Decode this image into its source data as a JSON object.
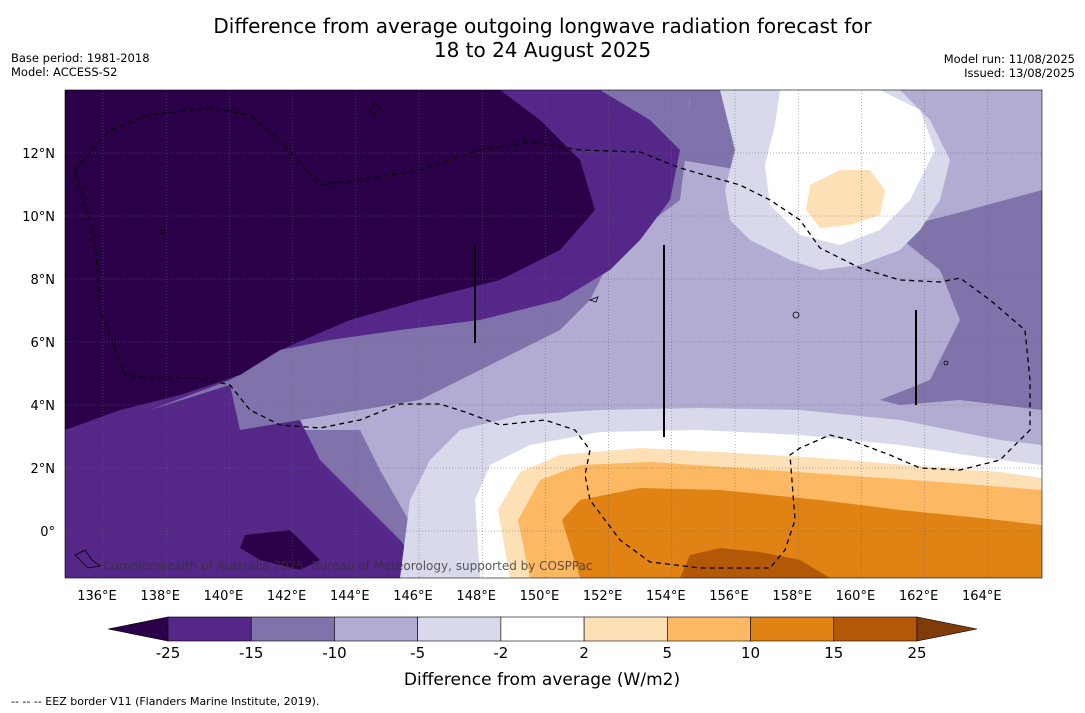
{
  "title_line1": "Difference from average outgoing longwave radiation forecast for",
  "title_line2": "18 to 24 August 2025",
  "base_period": "Base period: 1981-2018",
  "model": "Model: ACCESS-S2",
  "model_run": "Model run: 11/08/2025",
  "issued": "Issued: 13/08/2025",
  "copyright": "Commonwealth of Australia 2025, Bureau of Meteorology, supported by COSPPac",
  "lon_labels": [
    "136°E",
    "138°E",
    "140°E",
    "142°E",
    "144°E",
    "146°E",
    "148°E",
    "150°E",
    "152°E",
    "154°E",
    "156°E",
    "158°E",
    "160°E",
    "162°E",
    "164°E"
  ],
  "lat_labels": [
    "12°N",
    "10°N",
    "8°N",
    "6°N",
    "4°N",
    "2°N",
    "0°"
  ],
  "colorbar": {
    "title": "Difference from average (W/m2)",
    "ticks": [
      "-25",
      "-15",
      "-10",
      "-5",
      "-2",
      "2",
      "5",
      "10",
      "15",
      "25"
    ],
    "colors": [
      "#2a0048",
      "#542788",
      "#8073ac",
      "#b2abd2",
      "#d8daeb",
      "#ffffff",
      "#fee0b6",
      "#fdb863",
      "#e08214",
      "#b35806",
      "#7f3b08"
    ]
  },
  "footer": "--  --  -- EEZ border V11 (Flanders Marine Institute, 2019)."
}
